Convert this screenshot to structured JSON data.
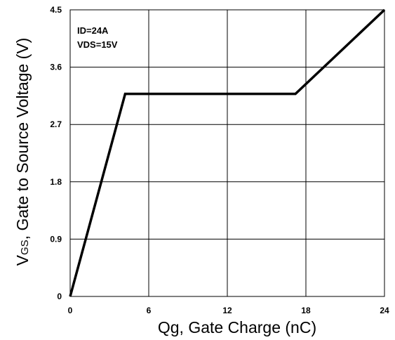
{
  "chart_data": {
    "type": "line",
    "title": "",
    "xlabel": "Qg, Gate Charge (nC)",
    "ylabel": {
      "main": "V",
      "subscript": "GS",
      "rest": ", Gate to Source Voltage (V)"
    },
    "xlim": [
      0,
      24
    ],
    "ylim": [
      0,
      4.5
    ],
    "x_ticks": [
      0,
      6,
      12,
      18,
      24
    ],
    "x_tick_labels": [
      "0",
      "6",
      "12",
      "18",
      "24"
    ],
    "y_ticks": [
      0,
      0.9,
      1.8,
      2.7,
      3.6,
      4.5
    ],
    "y_tick_labels": [
      "0",
      "0.9",
      "1.8",
      "2.7",
      "3.6",
      "4.5"
    ],
    "grid": true,
    "annotations": [
      "ID=24A",
      "VDS=15V"
    ],
    "series": [
      {
        "x": [
          0,
          4.2,
          17.2,
          24
        ],
        "y": [
          0,
          3.18,
          3.18,
          4.5
        ]
      }
    ],
    "colors": {
      "line": "#000000",
      "grid": "#000000",
      "background": "#ffffff"
    }
  }
}
